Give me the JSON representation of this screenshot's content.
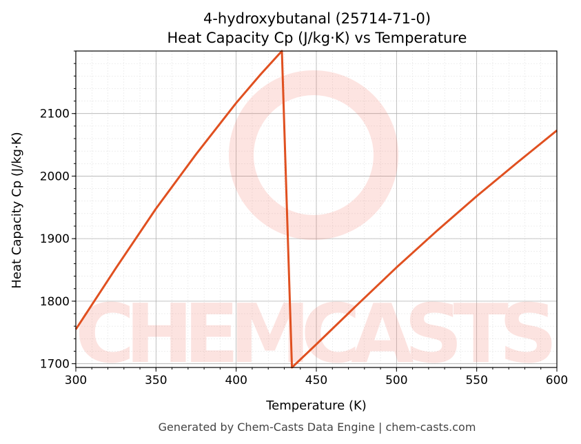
{
  "chart_data": {
    "type": "line",
    "title_line1": "4-hydroxybutanal (25714-71-0)",
    "title_line2": "Heat Capacity Cp (J/kg·K) vs Temperature",
    "xlabel": "Temperature (K)",
    "ylabel": "Heat Capacity Cp (J/kg·K)",
    "xlim": [
      300,
      600
    ],
    "ylim": [
      1694,
      2200
    ],
    "xticks": [
      300,
      350,
      400,
      450,
      500,
      550,
      600
    ],
    "yticks": [
      1700,
      1800,
      1900,
      2000,
      2100
    ],
    "grid": true,
    "line_color": "#e05020",
    "series": [
      {
        "x": [
          300,
          325,
          350,
          375,
          400,
          415,
          428.5,
          434.8,
          450,
          475,
          500,
          525,
          550,
          575,
          600
        ],
        "y": [
          1755,
          1853,
          1948,
          2035,
          2117,
          2162,
          2200,
          1694,
          1731,
          1793,
          1854,
          1912,
          1968,
          2021,
          2073
        ]
      }
    ]
  },
  "watermark": "CHEMCASTS",
  "footer": "Generated by Chem-Casts Data Engine | chem-casts.com"
}
